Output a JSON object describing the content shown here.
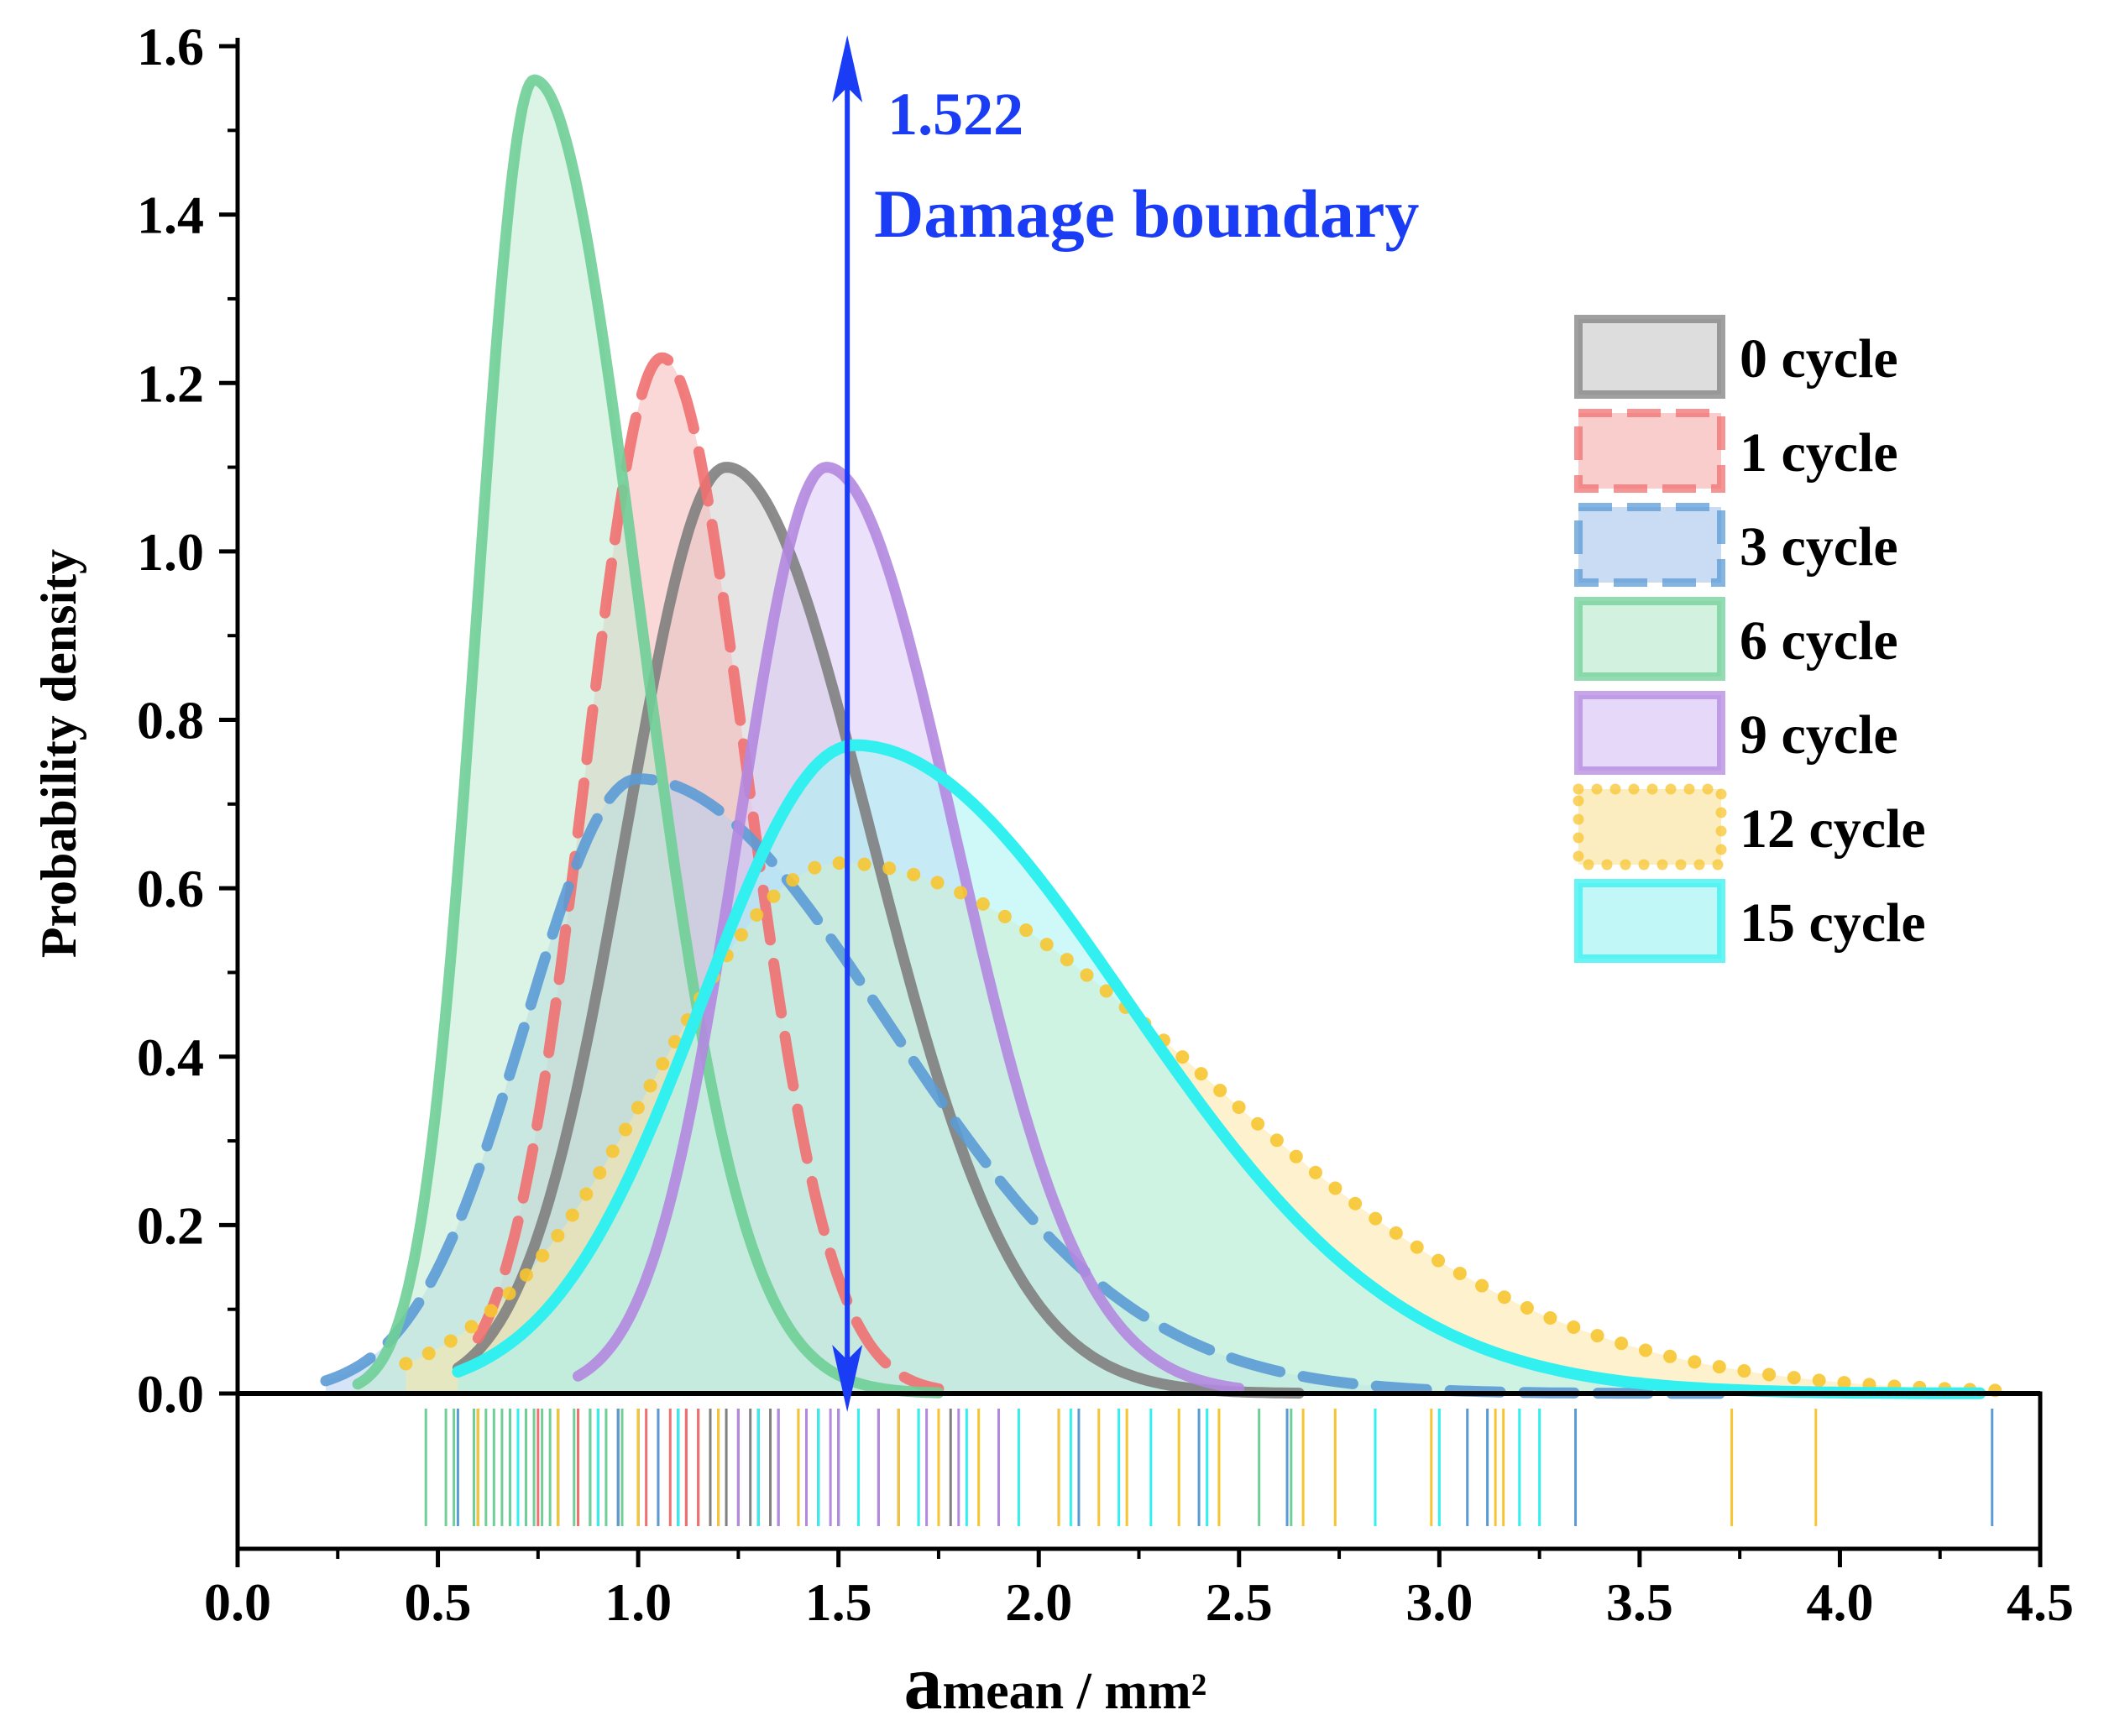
{
  "chart_data": {
    "type": "area",
    "title": "",
    "xlabel_main": "a",
    "xlabel_sub": "mean / mm²",
    "ylabel": "Probability density",
    "xlim": [
      0.0,
      4.5
    ],
    "ylim": [
      0.0,
      1.6
    ],
    "xticks": [
      "0.0",
      "0.5",
      "1.0",
      "1.5",
      "2.0",
      "2.5",
      "3.0",
      "3.5",
      "4.0",
      "4.5"
    ],
    "yticks": [
      "0.0",
      "0.2",
      "0.4",
      "0.6",
      "0.8",
      "1.0",
      "1.2",
      "1.4",
      "1.6"
    ],
    "legend_position": "right",
    "series": [
      {
        "name": "0 cycle",
        "style": "solid",
        "color": "#808080",
        "fill": "#cfcfcf",
        "mode": 1.22,
        "peak": 1.1,
        "sigma_left": 0.25,
        "sigma_right": 0.36,
        "x_range": [
          0.55,
          2.65
        ]
      },
      {
        "name": "1 cycle",
        "style": "dashed",
        "color": "#f07070",
        "fill": "#f8b8b8",
        "mode": 1.06,
        "peak": 1.23,
        "sigma_left": 0.19,
        "sigma_right": 0.21,
        "x_range": [
          0.6,
          1.75
        ]
      },
      {
        "name": "3 cycle",
        "style": "dashed",
        "color": "#5b9bd5",
        "fill": "#b4cdf0",
        "mode": 1.0,
        "peak": 0.73,
        "sigma_left": 0.28,
        "sigma_right": 0.62,
        "x_range": [
          0.22,
          3.7
        ]
      },
      {
        "name": "6 cycle",
        "style": "solid",
        "color": "#6fcf97",
        "fill": "#bfebd2",
        "mode": 0.74,
        "peak": 1.56,
        "sigma_left": 0.14,
        "sigma_right": 0.26,
        "x_range": [
          0.3,
          1.75
        ]
      },
      {
        "name": "9 cycle",
        "style": "solid",
        "color": "#b388e0",
        "fill": "#dcc8f5",
        "mode": 1.47,
        "peak": 1.1,
        "sigma_left": 0.22,
        "sigma_right": 0.32,
        "x_range": [
          0.85,
          2.5
        ]
      },
      {
        "name": "12 cycle",
        "style": "dotted",
        "color": "#f7c531",
        "fill": "#fbe6a6",
        "mode": 1.5,
        "peak": 0.63,
        "sigma_left": 0.45,
        "sigma_right": 0.9,
        "x_range": [
          0.42,
          4.45
        ]
      },
      {
        "name": "15 cycle",
        "style": "solid",
        "color": "#33f0f0",
        "fill": "#a8f4f4",
        "mode": 1.54,
        "peak": 0.77,
        "sigma_left": 0.38,
        "sigma_right": 0.68,
        "x_range": [
          0.55,
          4.35
        ]
      }
    ],
    "rug": {
      "0 cycle": [
        0.85,
        0.9,
        0.95,
        1.0,
        1.05,
        1.1,
        1.12,
        1.15,
        1.18,
        1.2,
        1.22,
        1.25,
        1.28,
        1.3,
        1.33,
        1.35,
        1.4,
        1.45,
        1.5,
        1.55,
        1.6,
        1.7,
        1.78
      ],
      "1 cycle": [
        0.75,
        0.8,
        0.85,
        0.9,
        0.95,
        1.0,
        1.02,
        1.05,
        1.08,
        1.1,
        1.12,
        1.15,
        1.2,
        1.25,
        1.3,
        1.35,
        1.45,
        1.55
      ],
      "3 cycle": [
        0.55,
        0.6,
        0.68,
        0.72,
        0.8,
        0.88,
        0.95,
        1.0,
        1.05,
        1.1,
        1.2,
        1.35,
        1.5,
        1.65,
        1.9,
        2.1,
        2.4,
        2.62,
        3.07,
        3.12,
        3.34,
        4.38
      ],
      "6 cycle": [
        0.47,
        0.52,
        0.54,
        0.59,
        0.6,
        0.62,
        0.64,
        0.66,
        0.68,
        0.7,
        0.72,
        0.74,
        0.76,
        0.78,
        0.8,
        0.84,
        0.88,
        0.92,
        0.96,
        1.0,
        1.1,
        1.2,
        2.55,
        2.63
      ],
      "9 cycle": [
        1.1,
        1.2,
        1.25,
        1.3,
        1.35,
        1.4,
        1.42,
        1.45,
        1.48,
        1.5,
        1.55,
        1.6,
        1.65,
        1.72,
        1.8,
        1.9,
        2.05
      ],
      "12 cycle": [
        0.6,
        0.8,
        1.0,
        1.2,
        1.4,
        1.55,
        1.65,
        1.75,
        1.85,
        1.95,
        2.05,
        2.15,
        2.22,
        2.35,
        2.45,
        2.66,
        2.74,
        2.98,
        3.14,
        3.16,
        3.73,
        3.94
      ],
      "15 cycle": [
        0.7,
        0.9,
        1.1,
        1.3,
        1.45,
        1.55,
        1.7,
        1.82,
        1.95,
        2.08,
        2.2,
        2.28,
        2.42,
        2.84,
        3.0,
        3.2,
        3.25
      ]
    },
    "annotation": {
      "value": "1.522",
      "label": "Damage boundary",
      "x": 1.522,
      "color": "#1a3cf5"
    }
  }
}
